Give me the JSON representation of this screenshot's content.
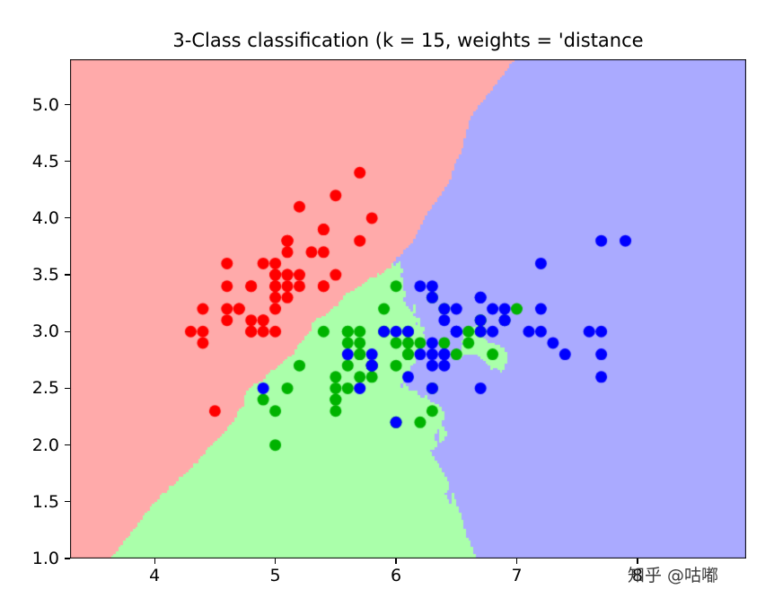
{
  "figure": {
    "background": "#ffffff",
    "watermark": "知乎 @咕嘟"
  },
  "chart_data": {
    "type": "scatter",
    "title": "3-Class classification (k = 15, weights = 'distance",
    "k": 15,
    "weights": "distance",
    "xlim": [
      3.3,
      8.9
    ],
    "ylim": [
      1.0,
      5.4
    ],
    "xticks": [
      4,
      5,
      6,
      7,
      8
    ],
    "yticks": [
      1.0,
      1.5,
      2.0,
      2.5,
      3.0,
      3.5,
      4.0,
      4.5,
      5.0
    ],
    "grid": false,
    "legend": "none",
    "mesh_step": 0.02,
    "marker_radius_px": 6.5,
    "axis_color": "#000000",
    "series": [
      {
        "name": "class-0",
        "point_color": "#ff0000",
        "region_color": "#ffaaaa",
        "points": [
          [
            5.1,
            3.5
          ],
          [
            4.9,
            3.0
          ],
          [
            4.7,
            3.2
          ],
          [
            4.6,
            3.1
          ],
          [
            5.0,
            3.6
          ],
          [
            5.4,
            3.9
          ],
          [
            4.6,
            3.4
          ],
          [
            5.0,
            3.4
          ],
          [
            4.4,
            2.9
          ],
          [
            4.9,
            3.1
          ],
          [
            5.4,
            3.7
          ],
          [
            4.8,
            3.4
          ],
          [
            4.8,
            3.0
          ],
          [
            4.3,
            3.0
          ],
          [
            5.8,
            4.0
          ],
          [
            5.7,
            4.4
          ],
          [
            5.4,
            3.9
          ],
          [
            5.1,
            3.5
          ],
          [
            5.7,
            3.8
          ],
          [
            5.1,
            3.8
          ],
          [
            5.4,
            3.4
          ],
          [
            5.1,
            3.7
          ],
          [
            4.6,
            3.6
          ],
          [
            5.1,
            3.3
          ],
          [
            4.8,
            3.4
          ],
          [
            5.0,
            3.0
          ],
          [
            5.0,
            3.4
          ],
          [
            5.2,
            3.5
          ],
          [
            5.2,
            3.4
          ],
          [
            4.7,
            3.2
          ],
          [
            4.8,
            3.1
          ],
          [
            5.4,
            3.4
          ],
          [
            5.2,
            4.1
          ],
          [
            5.5,
            4.2
          ],
          [
            4.9,
            3.1
          ],
          [
            5.0,
            3.2
          ],
          [
            5.5,
            3.5
          ],
          [
            4.9,
            3.6
          ],
          [
            4.4,
            3.0
          ],
          [
            5.1,
            3.4
          ],
          [
            5.0,
            3.5
          ],
          [
            4.5,
            2.3
          ],
          [
            4.4,
            3.2
          ],
          [
            5.0,
            3.5
          ],
          [
            5.1,
            3.8
          ],
          [
            4.8,
            3.0
          ],
          [
            5.1,
            3.8
          ],
          [
            4.6,
            3.2
          ],
          [
            5.3,
            3.7
          ],
          [
            5.0,
            3.3
          ]
        ]
      },
      {
        "name": "class-1",
        "point_color": "#00b300",
        "region_color": "#aaffaa",
        "points": [
          [
            7.0,
            3.2
          ],
          [
            6.4,
            3.2
          ],
          [
            6.9,
            3.1
          ],
          [
            5.5,
            2.3
          ],
          [
            6.5,
            2.8
          ],
          [
            5.7,
            2.8
          ],
          [
            6.3,
            3.3
          ],
          [
            4.9,
            2.4
          ],
          [
            6.6,
            2.9
          ],
          [
            5.2,
            2.7
          ],
          [
            5.0,
            2.0
          ],
          [
            5.9,
            3.0
          ],
          [
            6.0,
            2.2
          ],
          [
            6.1,
            2.9
          ],
          [
            5.6,
            2.9
          ],
          [
            6.7,
            3.1
          ],
          [
            5.6,
            3.0
          ],
          [
            5.8,
            2.7
          ],
          [
            6.2,
            2.2
          ],
          [
            5.6,
            2.5
          ],
          [
            5.9,
            3.2
          ],
          [
            6.1,
            2.8
          ],
          [
            6.3,
            2.5
          ],
          [
            6.1,
            2.8
          ],
          [
            6.4,
            2.9
          ],
          [
            6.6,
            3.0
          ],
          [
            6.8,
            2.8
          ],
          [
            6.7,
            3.0
          ],
          [
            6.0,
            2.9
          ],
          [
            5.7,
            2.6
          ],
          [
            5.5,
            2.4
          ],
          [
            5.5,
            2.4
          ],
          [
            5.8,
            2.7
          ],
          [
            6.0,
            2.7
          ],
          [
            5.4,
            3.0
          ],
          [
            6.0,
            3.4
          ],
          [
            6.7,
            3.1
          ],
          [
            6.3,
            2.3
          ],
          [
            5.6,
            3.0
          ],
          [
            5.5,
            2.5
          ],
          [
            5.5,
            2.6
          ],
          [
            6.1,
            3.0
          ],
          [
            5.8,
            2.6
          ],
          [
            5.0,
            2.3
          ],
          [
            5.6,
            2.7
          ],
          [
            5.7,
            3.0
          ],
          [
            5.7,
            2.9
          ],
          [
            6.2,
            2.9
          ],
          [
            5.1,
            2.5
          ],
          [
            5.7,
            2.8
          ]
        ]
      },
      {
        "name": "class-2",
        "point_color": "#0000ff",
        "region_color": "#aaaaff",
        "points": [
          [
            6.3,
            3.3
          ],
          [
            5.8,
            2.7
          ],
          [
            7.1,
            3.0
          ],
          [
            6.3,
            2.9
          ],
          [
            6.5,
            3.0
          ],
          [
            7.6,
            3.0
          ],
          [
            4.9,
            2.5
          ],
          [
            7.3,
            2.9
          ],
          [
            6.7,
            2.5
          ],
          [
            7.2,
            3.6
          ],
          [
            6.5,
            3.2
          ],
          [
            6.4,
            2.7
          ],
          [
            6.8,
            3.0
          ],
          [
            5.7,
            2.5
          ],
          [
            5.8,
            2.8
          ],
          [
            6.4,
            3.2
          ],
          [
            6.5,
            3.0
          ],
          [
            7.7,
            3.8
          ],
          [
            7.7,
            2.6
          ],
          [
            6.0,
            2.2
          ],
          [
            6.9,
            3.2
          ],
          [
            5.6,
            2.8
          ],
          [
            7.7,
            2.8
          ],
          [
            6.3,
            2.7
          ],
          [
            6.7,
            3.3
          ],
          [
            7.2,
            3.2
          ],
          [
            6.2,
            2.8
          ],
          [
            6.1,
            3.0
          ],
          [
            6.4,
            2.8
          ],
          [
            7.2,
            3.0
          ],
          [
            7.4,
            2.8
          ],
          [
            7.9,
            3.8
          ],
          [
            6.4,
            2.8
          ],
          [
            6.3,
            2.8
          ],
          [
            6.1,
            2.6
          ],
          [
            7.7,
            3.0
          ],
          [
            6.3,
            3.4
          ],
          [
            6.4,
            3.1
          ],
          [
            6.0,
            3.0
          ],
          [
            6.9,
            3.1
          ],
          [
            6.7,
            3.1
          ],
          [
            6.9,
            3.1
          ],
          [
            5.8,
            2.7
          ],
          [
            6.8,
            3.2
          ],
          [
            6.7,
            3.3
          ],
          [
            6.7,
            3.0
          ],
          [
            6.3,
            2.5
          ],
          [
            6.5,
            3.0
          ],
          [
            6.2,
            3.4
          ],
          [
            5.9,
            3.0
          ]
        ]
      }
    ]
  }
}
